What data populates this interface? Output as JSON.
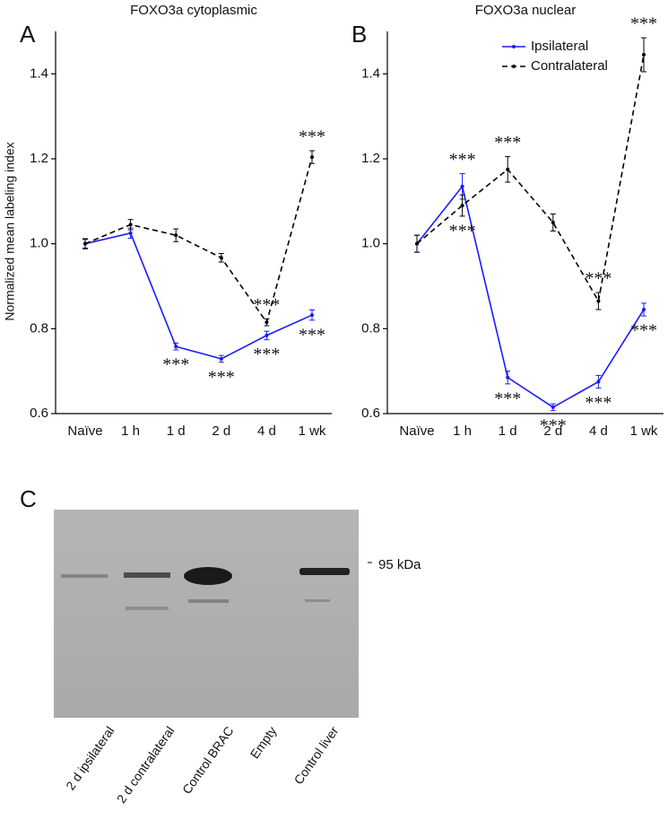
{
  "chart_data": [
    {
      "type": "line",
      "panel": "A",
      "title": "FOXO3a cytoplasmic",
      "y_label": "Normalized mean labeling index",
      "categories": [
        "Naïve",
        "1 h",
        "1 d",
        "2 d",
        "4 d",
        "1 wk"
      ],
      "ylim": [
        0.6,
        1.5
      ],
      "yticks": [
        0.6,
        0.8,
        {
          "value": 1.0,
          "label": "1.0"
        },
        1.2,
        1.4
      ],
      "series": [
        {
          "name": "Ipsilateral",
          "color": "#1a1aff",
          "linestyle": "solid",
          "values": [
            1.0,
            1.025,
            0.758,
            0.729,
            0.784,
            0.832
          ],
          "errors": [
            0.01,
            0.012,
            0.008,
            0.008,
            0.01,
            0.012
          ],
          "annotations": [
            null,
            null,
            "***",
            "***",
            "***",
            "***"
          ]
        },
        {
          "name": "Contralateral",
          "color": "#000000",
          "linestyle": "dashed",
          "values": [
            1.0,
            1.045,
            1.02,
            0.967,
            0.815,
            1.204
          ],
          "errors": [
            0.012,
            0.012,
            0.015,
            0.01,
            0.008,
            0.015
          ],
          "annotations": [
            null,
            null,
            null,
            null,
            "***",
            "***"
          ]
        }
      ]
    },
    {
      "type": "line",
      "panel": "B",
      "title": "FOXO3a nuclear",
      "legend": "top-right",
      "categories": [
        "Naïve",
        "1 h",
        "1 d",
        "2 d",
        "4 d",
        "1 wk"
      ],
      "ylim": [
        0.6,
        1.5
      ],
      "yticks": [
        0.6,
        0.8,
        {
          "value": 1.0,
          "label": "1.0"
        },
        1.2,
        1.4
      ],
      "series": [
        {
          "name": "Ipsilateral",
          "color": "#1a1aff",
          "linestyle": "solid",
          "values": [
            1.0,
            1.135,
            0.685,
            0.615,
            0.675,
            0.845
          ],
          "errors": [
            0.02,
            0.03,
            0.015,
            0.008,
            0.015,
            0.015
          ],
          "annotations": [
            null,
            "***",
            "***",
            "***",
            "***",
            "***"
          ]
        },
        {
          "name": "Contralateral",
          "color": "#000000",
          "linestyle": "dashed",
          "values": [
            1.0,
            1.09,
            1.175,
            1.05,
            0.865,
            1.445
          ],
          "errors": [
            0.02,
            0.025,
            0.03,
            0.02,
            0.02,
            0.04
          ],
          "annotations": [
            null,
            "***",
            "***",
            null,
            "***",
            "***"
          ]
        }
      ]
    }
  ],
  "blot": {
    "panel": "C",
    "marker": "95 kDa",
    "lanes": [
      "2 d ipsilateral",
      "2 d contralateral",
      "Control BRAC",
      "Empty",
      "Control liver"
    ]
  }
}
